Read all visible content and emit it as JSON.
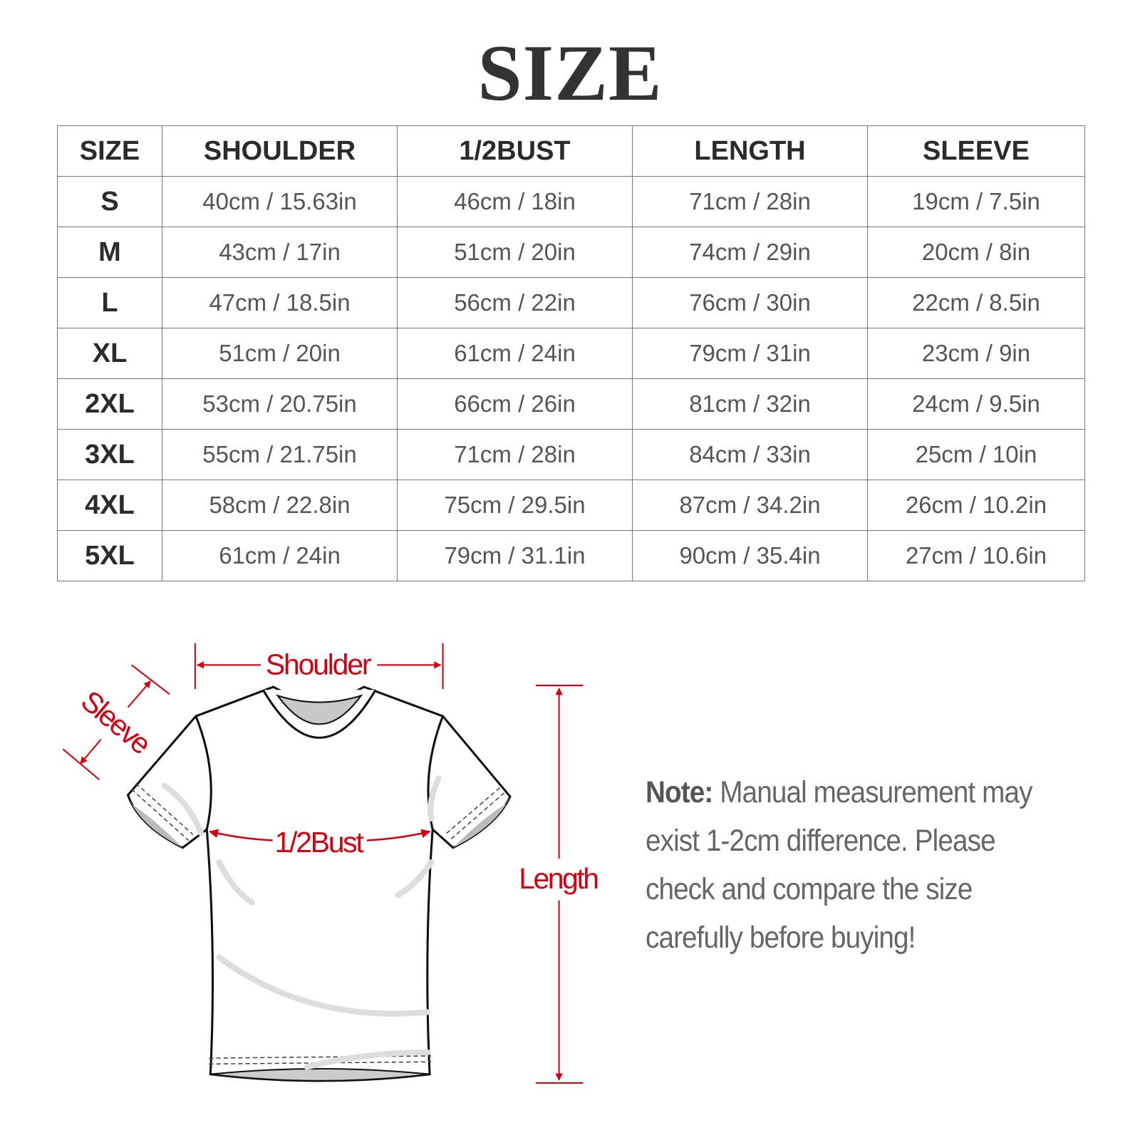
{
  "title": "SIZE",
  "table": {
    "headers": [
      "SIZE",
      "SHOULDER",
      "1/2BUST",
      "LENGTH",
      "SLEEVE"
    ],
    "rows": [
      [
        "S",
        "40cm / 15.63in",
        "46cm / 18in",
        "71cm / 28in",
        "19cm / 7.5in"
      ],
      [
        "M",
        "43cm / 17in",
        "51cm / 20in",
        "74cm / 29in",
        "20cm / 8in"
      ],
      [
        "L",
        "47cm / 18.5in",
        "56cm / 22in",
        "76cm / 30in",
        "22cm / 8.5in"
      ],
      [
        "XL",
        "51cm / 20in",
        "61cm / 24in",
        "79cm / 31in",
        "23cm / 9in"
      ],
      [
        "2XL",
        "53cm / 20.75in",
        "66cm / 26in",
        "81cm / 32in",
        "24cm / 9.5in"
      ],
      [
        "3XL",
        "55cm / 21.75in",
        "71cm / 28in",
        "84cm / 33in",
        "25cm / 10in"
      ],
      [
        "4XL",
        "58cm / 22.8in",
        "75cm / 29.5in",
        "87cm / 34.2in",
        "26cm / 10.2in"
      ],
      [
        "5XL",
        "61cm / 24in",
        "79cm / 31.1in",
        "90cm / 35.4in",
        "27cm / 10.6in"
      ]
    ]
  },
  "diagram": {
    "labels": {
      "shoulder": "Shoulder",
      "sleeve": "Sleeve",
      "bust": "1/2Bust",
      "length": "Length"
    },
    "accent_color": "#d40012"
  },
  "note": {
    "label": "Note:",
    "text": " Manual measurement may exist 1-2cm difference. Please check and compare the size carefully before buying!"
  }
}
